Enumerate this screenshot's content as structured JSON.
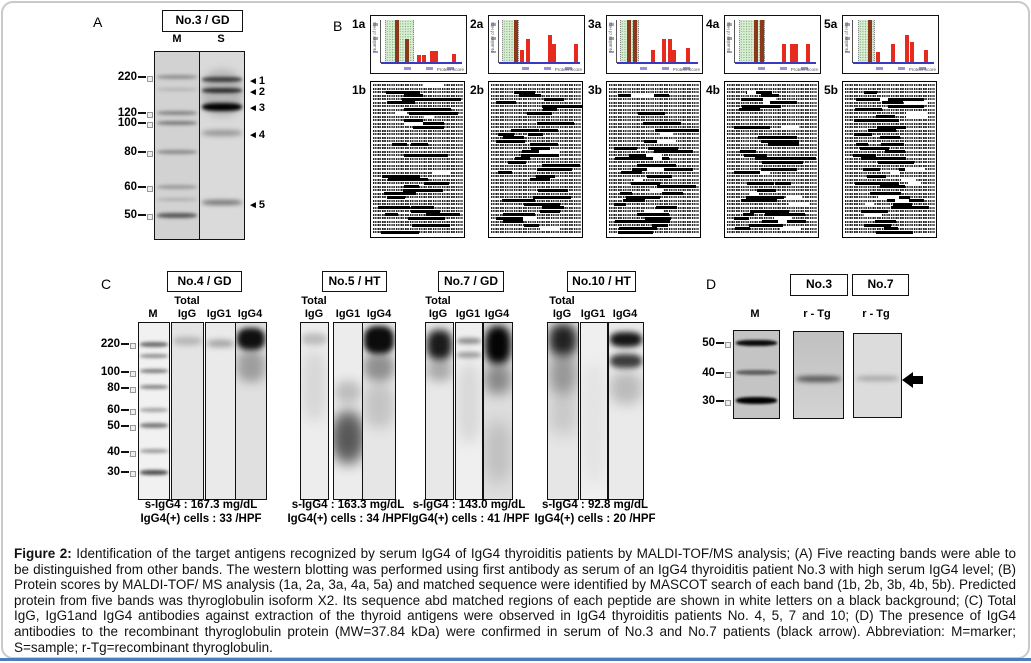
{
  "figure": {
    "panel_a": {
      "label": "A",
      "header": "No.3 / GD",
      "lane_labels": [
        "M",
        "S"
      ],
      "markers": [
        "220",
        "120",
        "100",
        "80",
        "60",
        "50"
      ],
      "band_arrows": [
        "1",
        "2",
        "3",
        "4",
        "5"
      ],
      "arrow_glyph": "◄"
    },
    "panel_b": {
      "label": "B",
      "columns": [
        {
          "chart_label": "1a",
          "seq_label": "1b"
        },
        {
          "chart_label": "2a",
          "seq_label": "2b"
        },
        {
          "chart_label": "3a",
          "seq_label": "3b"
        },
        {
          "chart_label": "4a",
          "seq_label": "4b"
        },
        {
          "chart_label": "5a",
          "seq_label": "5b"
        }
      ]
    },
    "panel_c": {
      "label": "C",
      "markers": [
        "220",
        "100",
        "80",
        "60",
        "50",
        "40",
        "30"
      ],
      "blots": [
        {
          "header": "No.4 / GD",
          "m_label": "M",
          "l1_top": "Total",
          "l1": "IgG",
          "l2": "IgG1",
          "l3": "IgG4",
          "s_igg4": "s-IgG4 : 167.3 mg/dL",
          "cells": "IgG4(+) cells : 33 /HPF"
        },
        {
          "header": "No.5 / HT",
          "l1_top": "Total",
          "l1": "IgG",
          "l2": "IgG1",
          "l3": "IgG4",
          "s_igg4": "s-IgG4 : 163.3 mg/dL",
          "cells": "IgG4(+) cells : 34 /HPF"
        },
        {
          "header": "No.7 / GD",
          "l1_top": "Total",
          "l1": "IgG",
          "l2": "IgG1",
          "l3": "IgG4",
          "s_igg4": "s-IgG4 : 143.0 mg/dL",
          "cells": "IgG4(+) cells : 41 /HPF"
        },
        {
          "header": "No.10 / HT",
          "l1_top": "Total",
          "l1": "IgG",
          "l2": "IgG1",
          "l3": "IgG4",
          "s_igg4": "s-IgG4 : 92.8 mg/dL",
          "cells": "IgG4(+) cells : 20 /HPF"
        }
      ]
    },
    "panel_d": {
      "label": "D",
      "headers": [
        "No.3",
        "No.7"
      ],
      "m_label": "M",
      "lane_labels": [
        "r - Tg",
        "r - Tg"
      ],
      "markers": [
        "50",
        "40",
        "30"
      ]
    },
    "caption": {
      "title": "Figure 2:",
      "body": " Identification of the target antigens recognized by serum IgG4 of IgG4 thyroiditis patients by MALDI-TOF/MS analysis; (A) Five reacting bands were able to be distinguished from other bands. The western blotting was performed using first antibody as serum of an IgG4 thyroiditis patient No.3 with high serum IgG4 level; (B) Protein scores by MALDI-TOF/ MS analysis (1a, 2a, 3a, 4a, 5a) and matched sequence were identified by MASCOT search of each band (1b, 2b, 3b, 4b, 5b). Predicted protein from five bands was thyroglobulin isoform X2. Its sequence abd matched regions of each peptide are shown in white letters on a black background; (C) Total IgG, IgG1and IgG4 antibodies against extraction of the thyroid antigens were observed in IgG4 thyroiditis patients No. 4, 5, 7 and 10; (D) The presence of IgG4 antibodies to the recombinant thyroglobulin protein (MW=37.84 kDa) were confirmed in serum of No.3 and No.7 patients (black arrow). Abbreviation: M=marker; S=sample; r-Tg=recombinant thyroglobulin."
    }
  },
  "chart_data": [
    {
      "id": "1a",
      "type": "bar",
      "xlabel": "Protein Score",
      "ylabel": "Number of Hits",
      "significance_zone_frac": [
        0.05,
        0.38
      ],
      "legend": "red bars = protein score hits; shaded zone = non-significant score region",
      "bars": [
        {
          "x_frac": 0.17,
          "h_frac": 1.0,
          "in_zone": true
        },
        {
          "x_frac": 0.3,
          "h_frac": 0.55,
          "in_zone": true
        },
        {
          "x_frac": 0.44,
          "h_frac": 0.18
        },
        {
          "x_frac": 0.5,
          "h_frac": 0.18
        },
        {
          "x_frac": 0.6,
          "h_frac": 0.28
        },
        {
          "x_frac": 0.655,
          "h_frac": 0.28
        },
        {
          "x_frac": 0.88,
          "h_frac": 0.2
        }
      ]
    },
    {
      "id": "2a",
      "type": "bar",
      "xlabel": "Protein Score",
      "ylabel": "Number of Hits",
      "significance_zone_frac": [
        0.04,
        0.22
      ],
      "bars": [
        {
          "x_frac": 0.19,
          "h_frac": 1.0,
          "in_zone": true
        },
        {
          "x_frac": 0.26,
          "h_frac": 0.3
        },
        {
          "x_frac": 0.33,
          "h_frac": 0.55
        },
        {
          "x_frac": 0.6,
          "h_frac": 0.65
        },
        {
          "x_frac": 0.66,
          "h_frac": 0.45
        },
        {
          "x_frac": 0.93,
          "h_frac": 0.45
        }
      ]
    },
    {
      "id": "3a",
      "type": "bar",
      "xlabel": "Protein Score",
      "ylabel": "Number of Hits",
      "significance_zone_frac": [
        0.04,
        0.25
      ],
      "bars": [
        {
          "x_frac": 0.12,
          "h_frac": 1.0,
          "in_zone": true
        },
        {
          "x_frac": 0.2,
          "h_frac": 1.0,
          "in_zone": true
        },
        {
          "x_frac": 0.42,
          "h_frac": 0.3
        },
        {
          "x_frac": 0.55,
          "h_frac": 0.55
        },
        {
          "x_frac": 0.63,
          "h_frac": 0.55
        },
        {
          "x_frac": 0.68,
          "h_frac": 0.3
        },
        {
          "x_frac": 0.85,
          "h_frac": 0.35
        }
      ]
    },
    {
      "id": "4a",
      "type": "bar",
      "xlabel": "Protein Score",
      "ylabel": "Number of Hits",
      "significance_zone_frac": [
        0.05,
        0.35
      ],
      "bars": [
        {
          "x_frac": 0.24,
          "h_frac": 1.0,
          "in_zone": true
        },
        {
          "x_frac": 0.31,
          "h_frac": 1.0,
          "in_zone": true
        },
        {
          "x_frac": 0.58,
          "h_frac": 0.45
        },
        {
          "x_frac": 0.68,
          "h_frac": 0.45
        },
        {
          "x_frac": 0.73,
          "h_frac": 0.45
        },
        {
          "x_frac": 0.88,
          "h_frac": 0.45
        }
      ]
    },
    {
      "id": "5a",
      "type": "bar",
      "xlabel": "Protein Score",
      "ylabel": "Number of Hits",
      "significance_zone_frac": [
        0.06,
        0.25
      ],
      "bars": [
        {
          "x_frac": 0.18,
          "h_frac": 1.0,
          "in_zone": true
        },
        {
          "x_frac": 0.29,
          "h_frac": 0.25
        },
        {
          "x_frac": 0.47,
          "h_frac": 0.45
        },
        {
          "x_frac": 0.64,
          "h_frac": 0.65
        },
        {
          "x_frac": 0.7,
          "h_frac": 0.5
        },
        {
          "x_frac": 0.88,
          "h_frac": 0.3
        }
      ]
    }
  ]
}
